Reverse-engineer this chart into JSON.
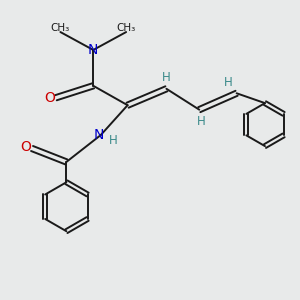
{
  "bg_color": "#e8eaea",
  "bond_color": "#1a1a1a",
  "N_color": "#0000cc",
  "O_color": "#cc0000",
  "H_color": "#3a8a8a",
  "Me_color": "#1a1a1a",
  "figsize": [
    3.0,
    3.0
  ],
  "dpi": 100,
  "xlim": [
    0,
    10
  ],
  "ylim": [
    0,
    10
  ]
}
